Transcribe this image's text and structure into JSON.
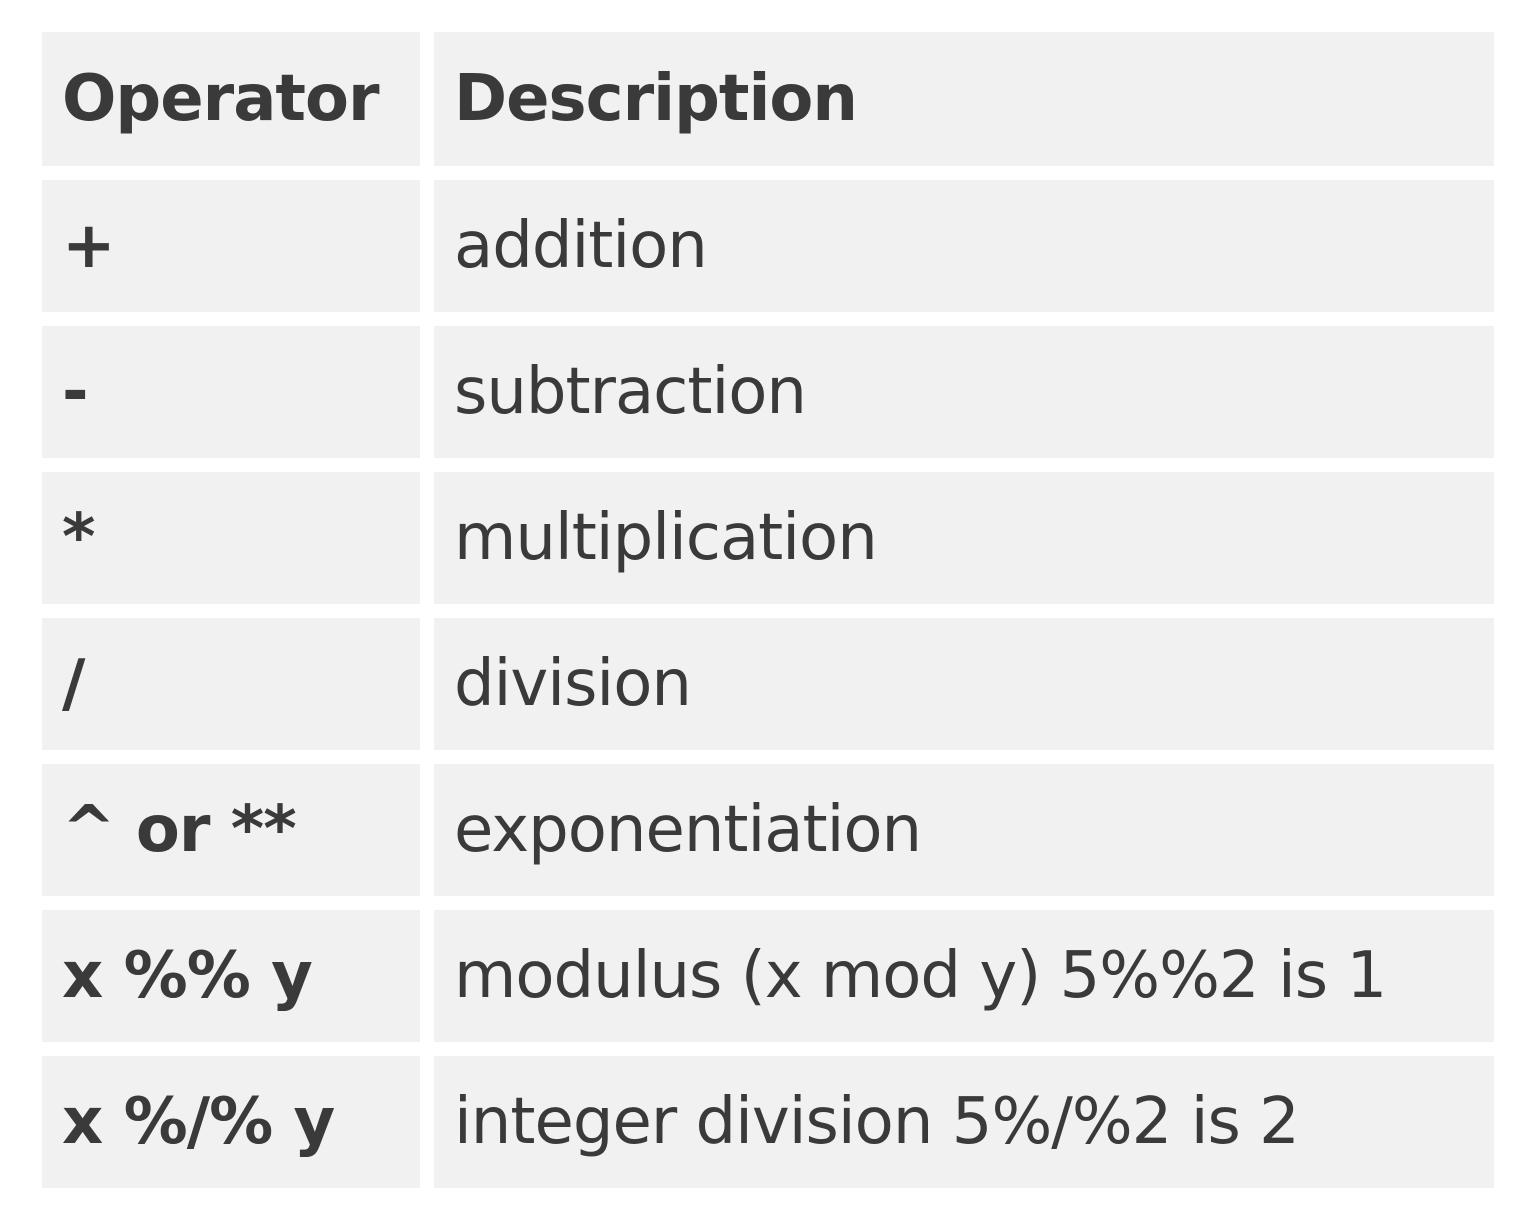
{
  "table": {
    "headers": {
      "operator": "Operator",
      "description": "Description"
    },
    "rows": [
      {
        "operator": "+",
        "description": "addition"
      },
      {
        "operator": "-",
        "description": "subtraction"
      },
      {
        "operator": "*",
        "description": "multiplication"
      },
      {
        "operator": "/",
        "description": "division"
      },
      {
        "operator": "^ or **",
        "description": "exponentiation"
      },
      {
        "operator": "x %% y",
        "description": "modulus (x mod y) 5%%2 is 1"
      },
      {
        "operator": "x %/% y",
        "description": "integer division 5%/%2 is 2"
      }
    ]
  },
  "colors": {
    "cell_background": "#f1f1f1",
    "text": "#3a3a3a",
    "page_background": "#ffffff"
  }
}
